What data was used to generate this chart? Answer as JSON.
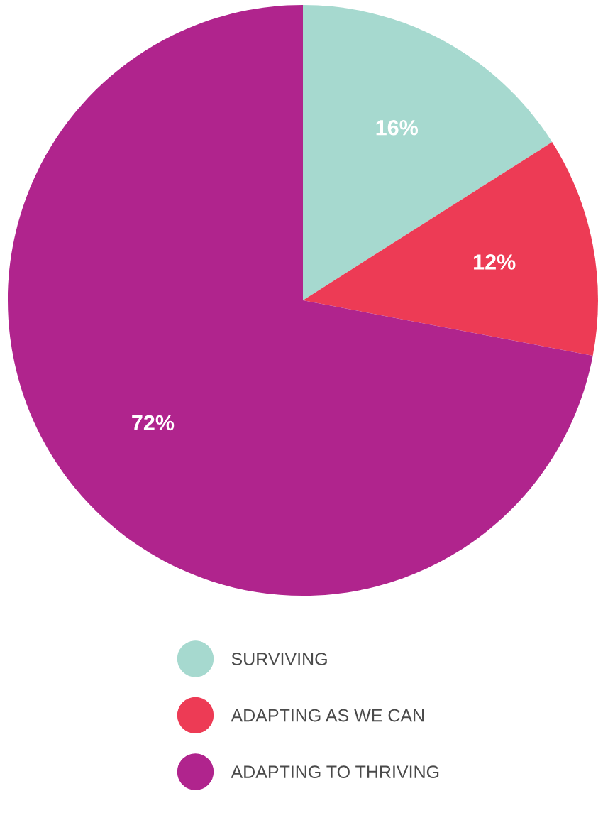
{
  "chart_data": {
    "type": "pie",
    "categories": [
      "SURVIVING",
      "ADAPTING AS WE CAN",
      "ADAPTING TO THRIVING"
    ],
    "values": [
      16,
      12,
      72
    ],
    "colors": [
      "#a6d9cf",
      "#ed3b55",
      "#b0248d"
    ],
    "value_labels": [
      "16%",
      "12%",
      "72%"
    ],
    "legend": "bottom"
  }
}
